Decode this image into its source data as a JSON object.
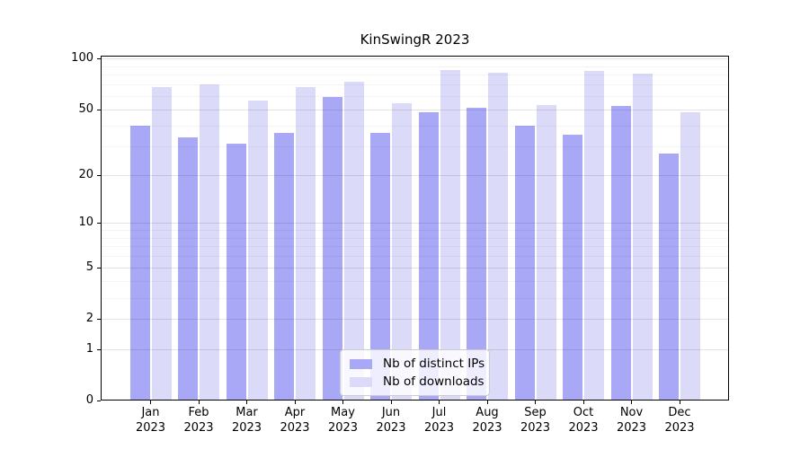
{
  "chart_data": {
    "type": "bar",
    "title": "KinSwingR 2023",
    "x_categories": [
      "Jan",
      "Feb",
      "Mar",
      "Apr",
      "May",
      "Jun",
      "Jul",
      "Aug",
      "Sep",
      "Oct",
      "Nov",
      "Dec"
    ],
    "x_year": "2023",
    "series": [
      {
        "name": "Nb of distinct IPs",
        "color": "#a8a8f7",
        "values": [
          40,
          34,
          31,
          36,
          59,
          36,
          48,
          51,
          40,
          35,
          52,
          27
        ]
      },
      {
        "name": "Nb of downloads",
        "color": "#dbdbf9",
        "values": [
          68,
          70,
          56,
          68,
          73,
          54,
          85,
          82,
          53,
          84,
          81,
          48
        ]
      }
    ],
    "y_scale": "log10(1+v)",
    "y_major_ticks": [
      0,
      1,
      2,
      5,
      10,
      20,
      50,
      100
    ],
    "y_minor_ticks": [
      3,
      4,
      6,
      7,
      8,
      9,
      30,
      40,
      60,
      70,
      80,
      90
    ],
    "ylim": [
      0,
      104
    ],
    "xlabel": "",
    "ylabel": "",
    "grid": "horizontal",
    "legend": {
      "position": "lower center"
    }
  }
}
